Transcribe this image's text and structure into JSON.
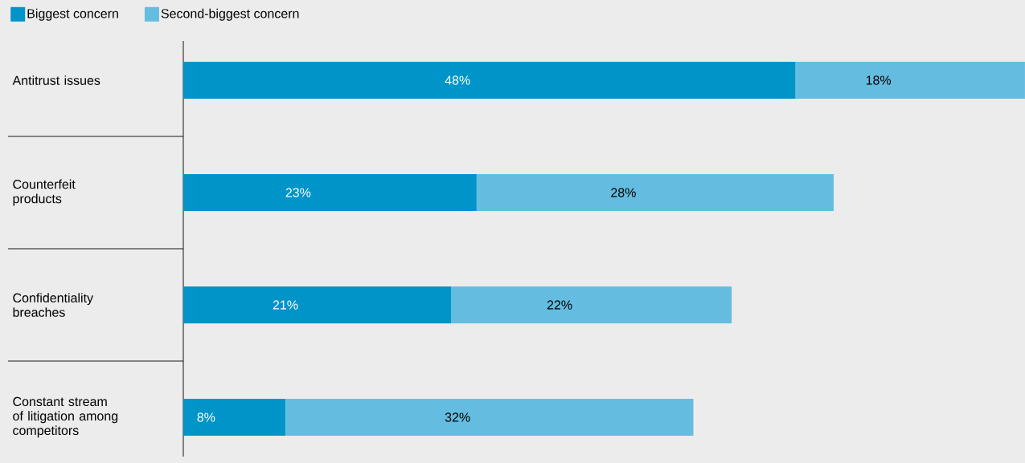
{
  "chart_data": {
    "type": "bar",
    "orientation": "horizontal",
    "stacked": true,
    "legend": "top left",
    "categories": [
      "Antitrust issues",
      "Counterfeit\nproducts",
      "Confidentiality\nbreaches",
      "Constant stream\nof litigation among\ncompetitors"
    ],
    "series": [
      {
        "name": "Biggest concern",
        "color": "#0094c8",
        "values": [
          48,
          23,
          21,
          8
        ],
        "value_labels": [
          "48%",
          "23%",
          "21%",
          "8%"
        ]
      },
      {
        "name": "Second-biggest concern",
        "color": "#64bde0",
        "values": [
          18,
          28,
          22,
          32
        ],
        "value_labels": [
          "18%",
          "28%",
          "22%",
          "32%"
        ]
      }
    ]
  }
}
